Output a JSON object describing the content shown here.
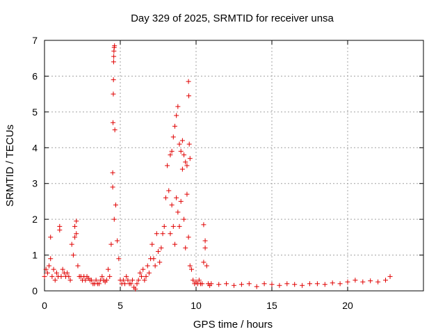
{
  "chart_data": {
    "type": "scatter",
    "title": "Day 329 of 2025, SRMTID for receiver unsa",
    "xlabel": "GPS time / hours",
    "ylabel": "SRMTID / TECUs",
    "xlim": [
      0,
      25
    ],
    "ylim": [
      0,
      7
    ],
    "xticks": [
      0,
      5,
      10,
      15,
      20
    ],
    "xtick_labels": [
      "0",
      "5",
      "10",
      "15",
      "20"
    ],
    "yticks": [
      0,
      1,
      2,
      3,
      4,
      5,
      6,
      7
    ],
    "ytick_labels": [
      "0",
      "1",
      "2",
      "3",
      "4",
      "5",
      "6",
      "7"
    ],
    "grid": true,
    "marker": "plus",
    "series": [
      {
        "name": "SRMTID",
        "color": "#e00000",
        "x": [
          0.0,
          0.1,
          0.2,
          0.3,
          0.4,
          0.5,
          0.6,
          0.7,
          0.8,
          0.9,
          1.0,
          1.1,
          1.2,
          1.3,
          1.4,
          1.5,
          1.6,
          1.7,
          1.8,
          1.9,
          2.0,
          2.1,
          2.2,
          2.3,
          2.4,
          2.5,
          2.6,
          2.7,
          2.8,
          2.9,
          3.0,
          3.1,
          3.2,
          3.3,
          3.4,
          3.5,
          3.6,
          3.7,
          3.8,
          3.9,
          4.0,
          4.1,
          4.2,
          4.3,
          4.4,
          4.5,
          4.6,
          4.7,
          4.8,
          4.9,
          5.0,
          5.1,
          5.2,
          5.3,
          5.4,
          5.5,
          5.6,
          5.7,
          5.8,
          5.9,
          6.0,
          6.1,
          6.2,
          6.3,
          6.4,
          6.5,
          6.6,
          6.7,
          6.8,
          6.9,
          7.0,
          7.1,
          7.2,
          7.3,
          7.4,
          7.5,
          7.6,
          7.7,
          7.8,
          7.9,
          8.0,
          8.1,
          8.2,
          8.3,
          8.4,
          8.5,
          8.6,
          8.7,
          8.8,
          8.9,
          9.0,
          9.1,
          9.2,
          9.3,
          9.4,
          9.5,
          9.6,
          9.7,
          9.8,
          9.9,
          10.0,
          10.1,
          10.2,
          10.3,
          10.4,
          10.5,
          10.6,
          10.7,
          10.8,
          10.9,
          11.0,
          11.5,
          12.0,
          12.5,
          13.0,
          13.5,
          14.0,
          14.5,
          15.0,
          15.5,
          16.0,
          16.5,
          17.0,
          17.5,
          18.0,
          18.5,
          19.0,
          19.5,
          20.0,
          20.5,
          21.0,
          21.5,
          22.0,
          22.5,
          22.8,
          4.5,
          4.52,
          4.54,
          4.55,
          4.56,
          4.57,
          4.58,
          4.6,
          4.62,
          4.64,
          8.3,
          8.4,
          8.5,
          8.6,
          8.7,
          8.8,
          8.9,
          9.0,
          9.1,
          9.2,
          9.3,
          9.4,
          9.5,
          9.52,
          9.55,
          9.6,
          0.4,
          1.0,
          2.0,
          2.1,
          10.5,
          10.6
        ],
        "y": [
          0.4,
          0.6,
          0.5,
          0.7,
          1.5,
          0.4,
          0.6,
          0.3,
          0.5,
          0.4,
          1.7,
          0.4,
          0.6,
          0.5,
          0.4,
          0.5,
          0.4,
          0.3,
          1.3,
          1.0,
          1.8,
          1.6,
          0.7,
          0.4,
          0.4,
          0.3,
          0.4,
          0.3,
          0.4,
          0.35,
          0.3,
          0.3,
          0.2,
          0.2,
          0.3,
          0.2,
          0.2,
          0.3,
          0.4,
          0.3,
          0.25,
          0.3,
          0.6,
          0.4,
          1.3,
          2.9,
          2.0,
          2.4,
          1.4,
          0.9,
          0.3,
          0.2,
          0.3,
          0.2,
          0.4,
          0.3,
          0.2,
          0.2,
          0.3,
          0.1,
          0.05,
          0.2,
          0.3,
          0.5,
          0.4,
          0.6,
          0.3,
          0.4,
          0.7,
          0.5,
          0.9,
          1.3,
          0.9,
          0.7,
          1.6,
          1.1,
          0.8,
          1.2,
          1.6,
          1.8,
          2.6,
          3.5,
          2.8,
          1.6,
          2.4,
          1.8,
          1.3,
          2.6,
          2.2,
          1.8,
          2.5,
          3.4,
          2.0,
          1.2,
          2.7,
          1.5,
          0.7,
          0.6,
          0.3,
          0.2,
          0.25,
          0.2,
          0.3,
          0.2,
          0.2,
          0.8,
          1.2,
          0.7,
          0.2,
          0.15,
          0.2,
          0.18,
          0.2,
          0.15,
          0.18,
          0.2,
          0.12,
          0.2,
          0.18,
          0.15,
          0.2,
          0.18,
          0.15,
          0.2,
          0.2,
          0.18,
          0.22,
          0.2,
          0.25,
          0.3,
          0.25,
          0.28,
          0.25,
          0.3,
          0.4,
          3.3,
          4.7,
          5.5,
          5.9,
          6.4,
          6.55,
          6.7,
          6.8,
          6.85,
          4.5,
          3.8,
          3.9,
          4.3,
          4.6,
          4.9,
          5.15,
          4.1,
          3.9,
          4.2,
          3.8,
          3.6,
          3.5,
          5.85,
          5.45,
          4.1,
          3.7,
          0.9,
          1.8,
          1.5,
          1.95,
          1.85,
          1.4
        ]
      }
    ]
  }
}
